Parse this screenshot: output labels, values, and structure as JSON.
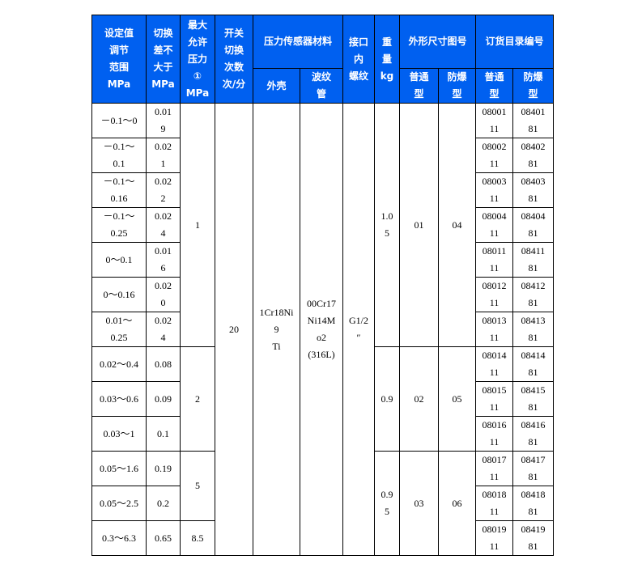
{
  "header": {
    "range": "设定值\n调节\n范围\nMPa",
    "diff": "切换\n差不\n大于\nMPa",
    "maxp": "最大\n允许\n压力\n①\nMPa",
    "freq": "开关\n切换\n次数\n次/分",
    "material": "压力传感器材料",
    "shell": "外壳",
    "bellows": "波纹\n管",
    "port": "接口\n内\n螺纹",
    "weight": "重\n量\nkg",
    "dims": "外形尺寸图号",
    "order": "订货目录编号",
    "normal": "普通\n型",
    "explosion": "防爆\n型",
    "normal2": "普通\n型",
    "explosion2": "防爆\n型"
  },
  "rows": [
    {
      "range": "－0.1～0",
      "diff": "0.01\n9",
      "code_n": "08001\n11",
      "code_e": "08401\n81"
    },
    {
      "range": "－0.1～\n0.1",
      "diff": "0.02\n1",
      "code_n": "08002\n11",
      "code_e": "08402\n81"
    },
    {
      "range": "－0.1～\n0.16",
      "diff": "0.02\n2",
      "code_n": "08003\n11",
      "code_e": "08403\n81"
    },
    {
      "range": "－0.1～\n0.25",
      "diff": "0.02\n4",
      "code_n": "08004\n11",
      "code_e": "08404\n81"
    },
    {
      "range": "0～0.1",
      "diff": "0.01\n6",
      "code_n": "08011\n11",
      "code_e": "08411\n81"
    },
    {
      "range": "0～0.16",
      "diff": "0.02\n0",
      "code_n": "08012\n11",
      "code_e": "08412\n81"
    },
    {
      "range": "0.01～\n0.25",
      "diff": "0.02\n4",
      "code_n": "08013\n11",
      "code_e": "08413\n81"
    },
    {
      "range": "0.02～0.4",
      "diff": "0.08",
      "code_n": "08014\n11",
      "code_e": "08414\n81"
    },
    {
      "range": "0.03～0.6",
      "diff": "0.09",
      "code_n": "08015\n11",
      "code_e": "08415\n81"
    },
    {
      "range": "0.03～1",
      "diff": "0.1",
      "code_n": "08016\n11",
      "code_e": "08416\n81"
    },
    {
      "range": "0.05～1.6",
      "diff": "0.19",
      "code_n": "08017\n11",
      "code_e": "08417\n81"
    },
    {
      "range": "0.05～2.5",
      "diff": "0.2",
      "code_n": "08018\n11",
      "code_e": "08418\n81"
    },
    {
      "range": "0.3～6.3",
      "diff": "0.65",
      "code_n": "08019\n11",
      "code_e": "08419\n81"
    }
  ],
  "maxp": [
    "1",
    "2",
    "5",
    "8.5"
  ],
  "freq": "20",
  "shell": "1Cr18Ni\n9\nTi",
  "bellows": "00Cr17\nNi14M\no2\n(316L)",
  "port": "G1/2\n″",
  "groups": [
    {
      "weight": "1.0\n5",
      "normal": "01",
      "explosion": "04"
    },
    {
      "weight": "0.9",
      "normal": "02",
      "explosion": "05"
    },
    {
      "weight": "0.9\n5",
      "normal": "03",
      "explosion": "06"
    }
  ],
  "colors": {
    "header_bg": "#0060f0"
  }
}
